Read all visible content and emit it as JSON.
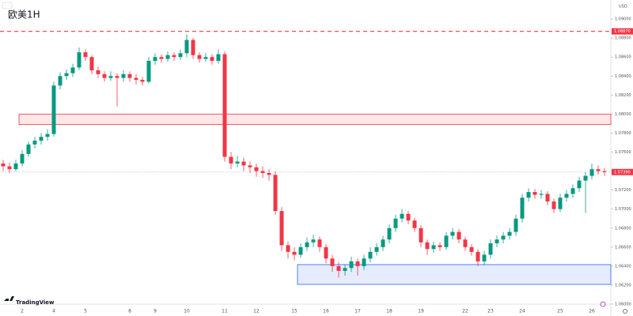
{
  "chart_data": {
    "type": "candlestick",
    "title": "欧美1H",
    "brand": "TradingView",
    "currency": "USD",
    "up_color": "#089981",
    "down_color": "#f23645",
    "categories": [
      null,
      null,
      null,
      "2",
      null,
      null,
      null,
      null,
      "4",
      null,
      null,
      null,
      null,
      "5",
      null,
      null,
      null,
      null,
      null,
      null,
      "8",
      null,
      null,
      null,
      "9",
      null,
      null,
      null,
      null,
      "10",
      null,
      null,
      null,
      null,
      null,
      "11",
      null,
      null,
      null,
      null,
      "12",
      null,
      null,
      null,
      null,
      null,
      "15",
      null,
      null,
      null,
      null,
      "16",
      null,
      null,
      null,
      null,
      "17",
      null,
      null,
      null,
      null,
      "18",
      null,
      null,
      null,
      null,
      "19",
      null,
      null,
      null,
      null,
      null,
      null,
      "22",
      null,
      null,
      null,
      "23",
      null,
      null,
      null,
      null,
      "24",
      null,
      null,
      null,
      null,
      null,
      "25",
      null,
      null,
      null,
      null,
      "26",
      null,
      null
    ],
    "open": [
      1.0748,
      1.0745,
      1.0742,
      1.0748,
      1.0758,
      1.0768,
      1.0772,
      1.0776,
      1.0779,
      1.083,
      1.084,
      1.0843,
      1.0849,
      1.0865,
      1.086,
      1.0846,
      1.0842,
      1.0838,
      1.084,
      1.0838,
      1.0842,
      1.0838,
      1.0836,
      1.0834,
      1.0856,
      1.086,
      1.0858,
      1.0862,
      1.086,
      1.0864,
      1.0878,
      1.0862,
      1.0858,
      1.086,
      1.0856,
      1.0863,
      1.0755,
      1.0748,
      1.075,
      1.0746,
      1.0744,
      1.074,
      1.0738,
      1.0736,
      1.0698,
      1.0662,
      1.0655,
      1.0652,
      1.066,
      1.0665,
      1.0668,
      1.066,
      1.0648,
      1.064,
      1.0635,
      1.0638,
      1.0645,
      1.064,
      1.0648,
      1.0655,
      1.066,
      1.0668,
      1.068,
      1.069,
      1.0695,
      1.0688,
      1.068,
      1.0665,
      1.0658,
      1.0662,
      1.066,
      1.0672,
      1.0676,
      1.0668,
      1.066,
      1.0655,
      1.0645,
      1.0652,
      1.0664,
      1.0668,
      1.0672,
      1.0676,
      1.069,
      1.0712,
      1.0718,
      1.0715,
      1.0716,
      1.0708,
      1.07,
      1.0712,
      1.0716,
      1.0722,
      1.073,
      1.0735,
      1.0742,
      1.074
    ],
    "high": [
      1.0752,
      1.0749,
      1.0752,
      1.0762,
      1.0771,
      1.0776,
      1.078,
      1.0784,
      1.0834,
      1.0844,
      1.0847,
      1.0853,
      1.087,
      1.0868,
      1.0862,
      1.085,
      1.0845,
      1.0845,
      1.0843,
      1.0846,
      1.0845,
      1.0842,
      1.0839,
      1.086,
      1.0864,
      1.0863,
      1.0866,
      1.0865,
      1.0868,
      1.0884,
      1.088,
      1.0865,
      1.0864,
      1.0863,
      1.0868,
      1.0866,
      1.076,
      1.0756,
      1.0754,
      1.075,
      1.0748,
      1.0745,
      1.0742,
      1.074,
      1.0702,
      1.0666,
      1.066,
      1.0664,
      1.067,
      1.0673,
      1.0671,
      1.0663,
      1.0652,
      1.0644,
      1.0642,
      1.065,
      1.0648,
      1.0652,
      1.066,
      1.0664,
      1.0672,
      1.0684,
      1.0694,
      1.07,
      1.0698,
      1.0691,
      1.0683,
      1.0668,
      1.0666,
      1.0665,
      1.0676,
      1.068,
      1.0679,
      1.0671,
      1.0663,
      1.0658,
      1.0656,
      1.0668,
      1.0672,
      1.0676,
      1.068,
      1.0694,
      1.0716,
      1.0722,
      1.0721,
      1.072,
      1.0719,
      1.0711,
      1.0716,
      1.072,
      1.0726,
      1.0734,
      1.0739,
      1.0748,
      1.0746,
      1.0743
    ],
    "low": [
      1.074,
      1.0738,
      1.074,
      1.0745,
      1.0755,
      1.0764,
      1.0768,
      1.0772,
      1.0776,
      1.0826,
      1.0836,
      1.0839,
      1.0846,
      1.0856,
      1.0842,
      1.0838,
      1.0834,
      1.0835,
      1.0808,
      1.0834,
      1.0834,
      1.0831,
      1.083,
      1.0832,
      1.0852,
      1.0854,
      1.0855,
      1.0856,
      1.0857,
      1.086,
      1.0858,
      1.0854,
      1.0855,
      1.0852,
      1.0853,
      1.075,
      1.0742,
      1.0744,
      1.074,
      1.0738,
      1.0734,
      1.0733,
      1.073,
      1.0694,
      1.0656,
      1.0648,
      1.0646,
      1.0649,
      1.0656,
      1.066,
      1.0655,
      1.0643,
      1.0634,
      1.0628,
      1.063,
      1.0634,
      1.063,
      1.0636,
      1.0644,
      1.0651,
      1.0656,
      1.0664,
      1.0676,
      1.0686,
      1.0684,
      1.0676,
      1.066,
      1.0652,
      1.0654,
      1.0656,
      1.0657,
      1.0668,
      1.0664,
      1.0656,
      1.0651,
      1.064,
      1.0641,
      1.0648,
      1.066,
      1.0664,
      1.0668,
      1.0672,
      1.0686,
      1.0708,
      1.0711,
      1.0711,
      1.0704,
      1.0696,
      1.0697,
      1.0708,
      1.0712,
      1.0718,
      1.0696,
      1.0731,
      1.0736,
      1.0735
    ],
    "close": [
      1.0745,
      1.0742,
      1.0748,
      1.0758,
      1.0768,
      1.0772,
      1.0776,
      1.0779,
      1.083,
      1.084,
      1.0843,
      1.0849,
      1.0865,
      1.086,
      1.0846,
      1.0842,
      1.0838,
      1.084,
      1.0838,
      1.0842,
      1.0838,
      1.0836,
      1.0834,
      1.0856,
      1.086,
      1.0858,
      1.0862,
      1.086,
      1.0864,
      1.0878,
      1.0862,
      1.0858,
      1.086,
      1.0856,
      1.0863,
      1.0755,
      1.0748,
      1.075,
      1.0746,
      1.0744,
      1.074,
      1.0738,
      1.0736,
      1.0698,
      1.0662,
      1.0655,
      1.0652,
      1.066,
      1.0665,
      1.0668,
      1.066,
      1.0648,
      1.064,
      1.0635,
      1.0638,
      1.0645,
      1.064,
      1.0648,
      1.0655,
      1.066,
      1.0668,
      1.068,
      1.069,
      1.0695,
      1.0688,
      1.068,
      1.0665,
      1.0658,
      1.0662,
      1.066,
      1.0672,
      1.0676,
      1.0668,
      1.066,
      1.0655,
      1.0645,
      1.0652,
      1.0664,
      1.0668,
      1.0672,
      1.0676,
      1.069,
      1.0712,
      1.0718,
      1.0715,
      1.0716,
      1.0708,
      1.07,
      1.0712,
      1.0716,
      1.0722,
      1.073,
      1.0735,
      1.0742,
      1.074,
      1.0739
    ],
    "ylim": [
      1.06,
      1.092
    ],
    "yticks": [
      {
        "value": 1.06,
        "label": "1.06000"
      },
      {
        "value": 1.062,
        "label": "1.06200"
      },
      {
        "value": 1.064,
        "label": "1.06400"
      },
      {
        "value": 1.066,
        "label": "1.06600"
      },
      {
        "value": 1.068,
        "label": "1.06800"
      },
      {
        "value": 1.07,
        "label": "1.07000"
      },
      {
        "value": 1.072,
        "label": "1.07200"
      },
      {
        "value": 1.074,
        "label": "1.07400"
      },
      {
        "value": 1.076,
        "label": "1.07600"
      },
      {
        "value": 1.078,
        "label": "1.07800"
      },
      {
        "value": 1.08,
        "label": "1.08000"
      },
      {
        "value": 1.082,
        "label": "1.08200"
      },
      {
        "value": 1.084,
        "label": "1.08400"
      },
      {
        "value": 1.086,
        "label": "1.08600"
      },
      {
        "value": 1.088,
        "label": "1.08800"
      },
      {
        "value": 1.09,
        "label": "1.09000"
      }
    ],
    "alert_line": {
      "value": 1.0887,
      "label": "1.08870",
      "color": "#f23645"
    },
    "last_price": {
      "value": 1.0739,
      "label": "1.07390",
      "color": "#f23645"
    },
    "zones": [
      {
        "top": 1.08,
        "bottom": 1.0789,
        "from": 1,
        "color": "#f23645"
      },
      {
        "top": 1.06416,
        "bottom": 1.06208,
        "from": 45,
        "color": "#2962ff"
      }
    ]
  }
}
